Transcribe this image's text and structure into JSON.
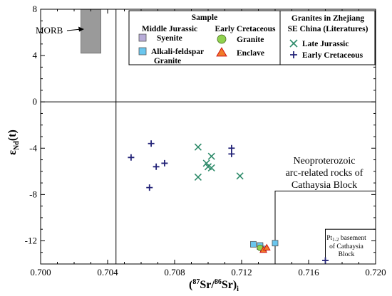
{
  "chart_data": {
    "type": "scatter",
    "xlabel": "(87Sr/86Sr)i",
    "ylabel": "εNd(t)",
    "xlim": [
      0.7,
      0.72
    ],
    "ylim": [
      -14,
      8
    ],
    "x_ticks": [
      "0.700",
      "0.704",
      "0.708",
      "0.712",
      "0.716",
      "0.720"
    ],
    "y_ticks": [
      "8",
      "4",
      "0",
      "-4",
      "-8",
      "-12"
    ],
    "grid": false,
    "legend_position": "top-right",
    "legend": {
      "sample_header": "Sample",
      "middle_jurassic_header": "Middle Jurassic",
      "early_cretaceous_header": "Early Cretaceous",
      "literature_header_1": "Granites in Zhejiang",
      "literature_header_2": "SE China (Literatures)"
    },
    "series": [
      {
        "name": "Syenite",
        "legend_label": "Syenite",
        "group": "Middle Jurassic",
        "marker": "square",
        "color": "#b8acd8",
        "points": [
          [
            0.7131,
            -12.5
          ]
        ]
      },
      {
        "name": "Alkali-feldspar Granite",
        "legend_label": [
          "Alkali-feldspar",
          "Granite"
        ],
        "group": "Middle Jurassic",
        "marker": "square",
        "color": "#6ac6ee",
        "points": [
          [
            0.7131,
            -12.4
          ],
          [
            0.7127,
            -12.3
          ],
          [
            0.7133,
            -12.7
          ],
          [
            0.714,
            -12.2
          ]
        ]
      },
      {
        "name": "Granite",
        "legend_label": "Granite",
        "group": "Early Cretaceous",
        "marker": "circle",
        "color": "#8fd14f",
        "points": [
          [
            0.7131,
            -12.6
          ]
        ]
      },
      {
        "name": "Enclave",
        "legend_label": "Enclave",
        "group": "Early Cretaceous",
        "marker": "triangle",
        "color": "#f07c2a",
        "points": [
          [
            0.7133,
            -12.8
          ],
          [
            0.7135,
            -12.6
          ]
        ]
      },
      {
        "name": "Late Jurassic",
        "legend_label": "Late Jurassic",
        "group": "Literatures",
        "marker": "x",
        "color": "#2e8b6a",
        "points": [
          [
            0.7094,
            -3.9
          ],
          [
            0.7099,
            -5.3
          ],
          [
            0.71,
            -5.6
          ],
          [
            0.7102,
            -5.7
          ],
          [
            0.7102,
            -4.7
          ],
          [
            0.7094,
            -6.5
          ],
          [
            0.7119,
            -6.4
          ]
        ]
      },
      {
        "name": "Early Cretaceous",
        "legend_label": "Early Cretaceous",
        "group": "Literatures",
        "marker": "plus",
        "color": "#232378",
        "points": [
          [
            0.7054,
            -4.8
          ],
          [
            0.7066,
            -3.6
          ],
          [
            0.7069,
            -5.6
          ],
          [
            0.7074,
            -5.3
          ],
          [
            0.7065,
            -7.4
          ],
          [
            0.7114,
            -4.0
          ],
          [
            0.7114,
            -4.5
          ],
          [
            0.717,
            -13.7
          ]
        ]
      }
    ],
    "annotations": {
      "morb": "MORB",
      "arc_region": [
        "Neoproterozoic",
        "arc-related rocks of",
        "Cathaysia Block"
      ],
      "basement_region": [
        "basement",
        "of Cathaysia",
        "Block"
      ],
      "basement_sub_prefix": "Pt",
      "basement_sub_index": "1-2"
    },
    "regions": {
      "morb_box": {
        "x": [
          0.7024,
          0.7036
        ],
        "y": [
          4.2,
          8
        ]
      },
      "arc_box": {
        "x": [
          0.714,
          0.72
        ],
        "y": [
          -14,
          -7.7
        ]
      },
      "basement_box": {
        "x": [
          0.717,
          0.72
        ],
        "y": [
          -14,
          -11
        ]
      },
      "bulk_earth_lines": {
        "x": 0.7045,
        "y": 0
      }
    },
    "colors": {
      "morb_fill": "#9a9a9a",
      "axis": "#000000"
    }
  }
}
